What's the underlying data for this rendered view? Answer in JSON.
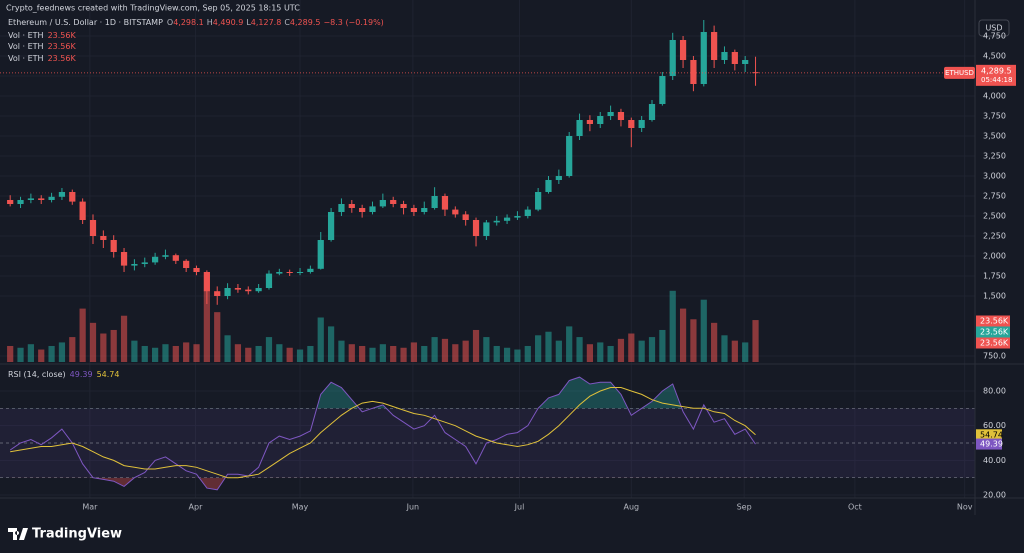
{
  "chart_data": {
    "type": "candlestick",
    "credit": "Crypto_feednews created with TradingView.com, Sep 05, 2025 18:15 UTC",
    "title": "Ethereum / U.S. Dollar · 1D · BITSTAMP",
    "ohlc_legend": [
      {
        "key": "O",
        "label": "4,298.1"
      },
      {
        "key": "H",
        "label": "4,490.9"
      },
      {
        "key": "L",
        "label": "4,127.8"
      },
      {
        "key": "C",
        "label": "4,289.5"
      }
    ],
    "change_label": "−8.3 (−0.19%)",
    "currency": "USD",
    "symbol": "ETHUSD",
    "countdown": "05:44:18",
    "up_color": "#26a69a",
    "down_color": "#ef5350",
    "candles": [
      [
        2700,
        2760,
        2620,
        2650
      ],
      [
        2650,
        2740,
        2600,
        2700
      ],
      [
        2700,
        2780,
        2660,
        2720
      ],
      [
        2720,
        2760,
        2650,
        2700
      ],
      [
        2700,
        2790,
        2670,
        2740
      ],
      [
        2740,
        2850,
        2700,
        2800
      ],
      [
        2800,
        2830,
        2640,
        2680
      ],
      [
        2680,
        2720,
        2400,
        2450
      ],
      [
        2450,
        2520,
        2150,
        2250
      ],
      [
        2250,
        2320,
        2100,
        2200
      ],
      [
        2200,
        2260,
        1980,
        2050
      ],
      [
        2050,
        2100,
        1800,
        1880
      ],
      [
        1880,
        1960,
        1820,
        1900
      ],
      [
        1900,
        1980,
        1860,
        1920
      ],
      [
        1920,
        2040,
        1890,
        1990
      ],
      [
        1990,
        2080,
        1960,
        2010
      ],
      [
        2010,
        2030,
        1900,
        1940
      ],
      [
        1940,
        1960,
        1800,
        1850
      ],
      [
        1850,
        1880,
        1760,
        1800
      ],
      [
        1800,
        1820,
        1400,
        1560
      ],
      [
        1560,
        1620,
        1390,
        1500
      ],
      [
        1500,
        1660,
        1460,
        1600
      ],
      [
        1600,
        1650,
        1540,
        1580
      ],
      [
        1580,
        1620,
        1520,
        1560
      ],
      [
        1560,
        1650,
        1540,
        1600
      ],
      [
        1600,
        1820,
        1580,
        1780
      ],
      [
        1780,
        1840,
        1760,
        1800
      ],
      [
        1800,
        1830,
        1750,
        1790
      ],
      [
        1790,
        1850,
        1760,
        1800
      ],
      [
        1800,
        1880,
        1780,
        1840
      ],
      [
        1840,
        2300,
        1830,
        2200
      ],
      [
        2200,
        2600,
        2180,
        2550
      ],
      [
        2550,
        2720,
        2500,
        2650
      ],
      [
        2650,
        2700,
        2540,
        2600
      ],
      [
        2600,
        2640,
        2480,
        2550
      ],
      [
        2550,
        2680,
        2520,
        2620
      ],
      [
        2620,
        2780,
        2600,
        2700
      ],
      [
        2700,
        2740,
        2610,
        2650
      ],
      [
        2650,
        2690,
        2520,
        2600
      ],
      [
        2600,
        2640,
        2500,
        2550
      ],
      [
        2550,
        2680,
        2520,
        2600
      ],
      [
        2600,
        2860,
        2580,
        2750
      ],
      [
        2750,
        2780,
        2500,
        2580
      ],
      [
        2580,
        2620,
        2480,
        2520
      ],
      [
        2520,
        2560,
        2380,
        2450
      ],
      [
        2450,
        2480,
        2120,
        2250
      ],
      [
        2250,
        2450,
        2200,
        2420
      ],
      [
        2420,
        2500,
        2380,
        2440
      ],
      [
        2440,
        2520,
        2400,
        2480
      ],
      [
        2480,
        2560,
        2450,
        2500
      ],
      [
        2500,
        2620,
        2470,
        2580
      ],
      [
        2580,
        2850,
        2560,
        2800
      ],
      [
        2800,
        3000,
        2780,
        2950
      ],
      [
        2950,
        3080,
        2900,
        3000
      ],
      [
        3000,
        3550,
        2980,
        3500
      ],
      [
        3500,
        3780,
        3450,
        3700
      ],
      [
        3700,
        3760,
        3560,
        3650
      ],
      [
        3650,
        3800,
        3600,
        3750
      ],
      [
        3750,
        3880,
        3700,
        3800
      ],
      [
        3800,
        3840,
        3620,
        3700
      ],
      [
        3700,
        3730,
        3360,
        3600
      ],
      [
        3600,
        3750,
        3550,
        3700
      ],
      [
        3700,
        3950,
        3680,
        3900
      ],
      [
        3900,
        4300,
        3880,
        4250
      ],
      [
        4250,
        4790,
        4200,
        4700
      ],
      [
        4700,
        4750,
        4350,
        4450
      ],
      [
        4450,
        4500,
        4060,
        4150
      ],
      [
        4150,
        4950,
        4120,
        4800
      ],
      [
        4800,
        4880,
        4350,
        4450
      ],
      [
        4450,
        4620,
        4400,
        4550
      ],
      [
        4550,
        4580,
        4320,
        4400
      ],
      [
        4400,
        4500,
        4300,
        4450
      ],
      [
        4298.1,
        4490.9,
        4127.8,
        4289.5
      ]
    ],
    "ylim": [
      675,
      5100
    ],
    "yticks": [
      {
        "value": 4750,
        "label": "4,750"
      },
      {
        "value": 4500,
        "label": "4,500"
      },
      {
        "value": 4250,
        "label": "4,250"
      },
      {
        "value": 4000,
        "label": "4,000"
      },
      {
        "value": 3750,
        "label": "3,750"
      },
      {
        "value": 3500,
        "label": "3,500"
      },
      {
        "value": 3250,
        "label": "3,250"
      },
      {
        "value": 3000,
        "label": "3,000"
      },
      {
        "value": 2750,
        "label": "2,750"
      },
      {
        "value": 2500,
        "label": "2,500"
      },
      {
        "value": 2250,
        "label": "2,250"
      },
      {
        "value": 2000,
        "label": "2,000"
      },
      {
        "value": 1750,
        "label": "1,750"
      },
      {
        "value": 1500,
        "label": "1,500"
      },
      {
        "value": 750,
        "label": "750.0"
      }
    ],
    "xlim": [
      -0.5,
      93.2
    ],
    "xticks": [
      {
        "value": 7.7,
        "label": "Mar"
      },
      {
        "value": 17.9,
        "label": "Apr"
      },
      {
        "value": 28.0,
        "label": "May"
      },
      {
        "value": 38.9,
        "label": "Jun"
      },
      {
        "value": 49.2,
        "label": "Jul"
      },
      {
        "value": 60.0,
        "label": "Aug"
      },
      {
        "value": 70.9,
        "label": "Sep"
      },
      {
        "value": 81.6,
        "label": "Oct"
      },
      {
        "value": 92.2,
        "label": "Nov"
      }
    ],
    "volume": {
      "name": "Vol · ETH",
      "last_value_label": "23.56K",
      "lim": [
        0,
        100
      ],
      "values": [
        9,
        8,
        10,
        7,
        9,
        11,
        14,
        30,
        22,
        16,
        18,
        26,
        12,
        9,
        8,
        10,
        9,
        11,
        10,
        40,
        28,
        15,
        10,
        8,
        9,
        14,
        10,
        8,
        7,
        9,
        25,
        20,
        12,
        10,
        9,
        8,
        10,
        9,
        8,
        11,
        9,
        14,
        13,
        10,
        12,
        18,
        14,
        9,
        8,
        7,
        9,
        15,
        17,
        12,
        20,
        14,
        10,
        11,
        9,
        13,
        16,
        12,
        14,
        18,
        40,
        30,
        24,
        35,
        22,
        15,
        12,
        11,
        23.56
      ]
    },
    "rsi": {
      "name": "RSI (14, close)",
      "color": "#7e57c2",
      "value_label": "49.39",
      "values": [
        46,
        50,
        52,
        49,
        53,
        58,
        50,
        38,
        30,
        29,
        28,
        25,
        30,
        33,
        40,
        42,
        38,
        34,
        32,
        24,
        23,
        32,
        32,
        31,
        36,
        50,
        54,
        52,
        54,
        57,
        78,
        85,
        82,
        75,
        68,
        70,
        72,
        66,
        62,
        58,
        60,
        66,
        56,
        52,
        48,
        38,
        50,
        52,
        55,
        56,
        60,
        70,
        76,
        78,
        86,
        88,
        84,
        85,
        85,
        78,
        66,
        70,
        74,
        80,
        84,
        68,
        58,
        72,
        62,
        64,
        55,
        58,
        49.39
      ],
      "ma": {
        "color": "#e0c13a",
        "value_label": "54.74",
        "values": [
          45,
          46,
          47,
          48,
          48,
          49,
          50,
          48,
          45,
          42,
          40,
          37,
          36,
          35,
          35,
          36,
          37,
          37,
          36,
          34,
          32,
          30,
          30,
          31,
          32,
          36,
          40,
          44,
          47,
          50,
          56,
          61,
          66,
          70,
          73,
          74,
          73,
          71,
          69,
          67,
          66,
          64,
          62,
          60,
          57,
          54,
          52,
          50,
          49,
          48,
          49,
          51,
          55,
          60,
          66,
          72,
          77,
          80,
          82,
          82,
          80,
          78,
          75,
          73,
          72,
          71,
          70,
          70,
          68,
          67,
          63,
          60,
          54.74
        ]
      },
      "ylim": [
        18.3,
        94.4
      ],
      "yticks": [
        {
          "value": 80,
          "label": "80.00"
        },
        {
          "value": 60,
          "label": "60.00"
        },
        {
          "value": 40,
          "label": "40.00"
        },
        {
          "value": 20,
          "label": "20.00"
        }
      ],
      "levels": [
        70,
        50,
        30
      ]
    },
    "brand": "TradingView"
  }
}
